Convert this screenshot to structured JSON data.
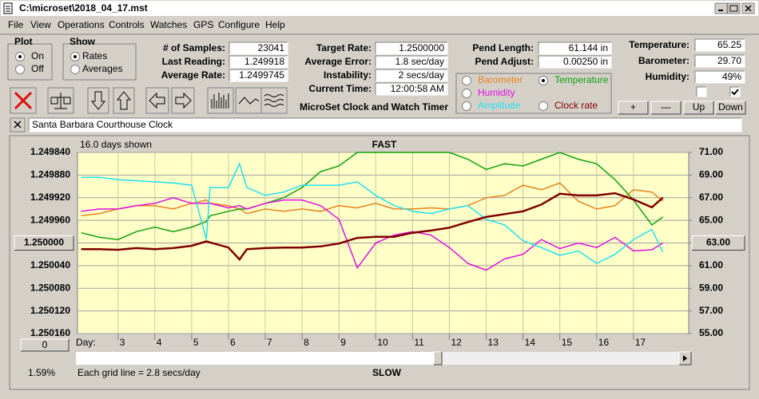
{
  "window": {
    "title": "C:\\microset\\2018_04_17.mst"
  },
  "menu": [
    "File",
    "View",
    "Operations",
    "Controls",
    "Watches",
    "GPS",
    "Configure",
    "Help"
  ],
  "plot_group": {
    "title": "Plot",
    "options": [
      {
        "label": "On",
        "checked": true
      },
      {
        "label": "Off",
        "checked": false
      }
    ]
  },
  "show_group": {
    "title": "Show",
    "options": [
      {
        "label": "Rates",
        "checked": true
      },
      {
        "label": "Averages",
        "checked": false
      }
    ]
  },
  "fields_1": [
    {
      "label": "# of Samples:",
      "value": "23041"
    },
    {
      "label": "Last Reading:",
      "value": "1.249918"
    },
    {
      "label": "Average Rate:",
      "value": "1.2499745"
    }
  ],
  "fields_2": [
    {
      "label": "Target Rate:",
      "value": "1.2500000"
    },
    {
      "label": "Average Error:",
      "value": "1.8 sec/day"
    },
    {
      "label": "Instability:",
      "value": "2 secs/day"
    },
    {
      "label": "Current Time:",
      "value": "12:00:58 AM"
    }
  ],
  "fields_3": [
    {
      "label": "Pend Length:",
      "value": "61.144 in"
    },
    {
      "label": "Pend Adjust:",
      "value": "0.00250 in"
    }
  ],
  "fields_4": [
    {
      "label": "Temperature:",
      "value": "65.25"
    },
    {
      "label": "Barometer:",
      "value": "29.70"
    },
    {
      "label": "Humidity:",
      "value": "49%"
    }
  ],
  "app_title": "MicroSet Clock and Watch Timer",
  "checkboxes": [
    false,
    true
  ],
  "buttons": [
    "+",
    "—",
    "Up",
    "Down"
  ],
  "clock_name": "Santa Barbara Courthouse Clock",
  "chart_data": {
    "type": "line",
    "days_shown": "16.0 days shown",
    "top_label": "FAST",
    "bottom_label": "SLOW",
    "x_label": "Day:",
    "grid_note": "Each grid line = 2.8 secs/day",
    "zoom": "0",
    "percent": "1.59%",
    "grid": true,
    "xlim": [
      1.9,
      18.5
    ],
    "xticks": [
      3,
      4,
      5,
      6,
      7,
      8,
      9,
      10,
      11,
      12,
      13,
      14,
      15,
      16,
      17
    ],
    "ylim": [
      1.25016,
      1.24984
    ],
    "yticks": [
      {
        "value": 1.25016,
        "label": "1.250160"
      },
      {
        "value": 1.25012,
        "label": "1.250120"
      },
      {
        "value": 1.25008,
        "label": "1.250080"
      },
      {
        "value": 1.25004,
        "label": "1.250040"
      },
      {
        "value": 1.25,
        "label": "1.250000"
      },
      {
        "value": 1.24996,
        "label": "1.249960"
      },
      {
        "value": 1.24992,
        "label": "1.249920"
      },
      {
        "value": 1.24988,
        "label": "1.249880"
      },
      {
        "value": 1.24984,
        "label": "1.249840"
      }
    ],
    "y2lim": [
      55,
      71
    ],
    "y2ticks": [
      {
        "value": 55,
        "label": "55.00"
      },
      {
        "value": 57,
        "label": "57.00"
      },
      {
        "value": 59,
        "label": "59.00"
      },
      {
        "value": 61,
        "label": "61.00"
      },
      {
        "value": 63,
        "label": "63.00"
      },
      {
        "value": 65,
        "label": "65.00"
      },
      {
        "value": 67,
        "label": "67.00"
      },
      {
        "value": 69,
        "label": "69.00"
      },
      {
        "value": 71,
        "label": "71.00"
      }
    ],
    "x": [
      2,
      2.5,
      3,
      3.5,
      4,
      4.5,
      5,
      5.4,
      5.5,
      6,
      6.3,
      6.5,
      7,
      7.5,
      8,
      8.5,
      9,
      9.5,
      10,
      10.5,
      11,
      11.5,
      12,
      12.5,
      13,
      13.5,
      14,
      14.5,
      15,
      15.5,
      16,
      16.5,
      17,
      17.5,
      17.8
    ],
    "series": [
      {
        "name": "Barometer",
        "color": "#e8821e",
        "axis": "y2",
        "selected": false,
        "values": [
          65.4,
          65.6,
          66.0,
          66.3,
          66.3,
          66.0,
          66.5,
          66.8,
          66.5,
          66.3,
          66.0,
          65.6,
          66.0,
          65.8,
          66.0,
          65.8,
          66.3,
          66.1,
          66.5,
          66.0,
          66.0,
          66.1,
          66.0,
          66.3,
          67.0,
          67.2,
          68.1,
          67.7,
          68.3,
          66.7,
          66.0,
          66.3,
          67.7,
          67.5,
          66.7
        ]
      },
      {
        "name": "Temperature",
        "color": "#10a010",
        "axis": "y2",
        "selected": true,
        "values": [
          63.9,
          63.5,
          63.3,
          64.0,
          64.4,
          64.0,
          64.4,
          64.9,
          65.4,
          65.8,
          66.0,
          66.0,
          66.5,
          67.0,
          67.9,
          69.3,
          69.8,
          71.0,
          71.0,
          71.0,
          71.0,
          71.0,
          71.0,
          70.4,
          69.5,
          70.0,
          69.8,
          70.4,
          71.0,
          70.4,
          70.0,
          68.6,
          66.8,
          64.6,
          65.3
        ]
      },
      {
        "name": "Humidity",
        "color": "#e010e0",
        "axis": "y2",
        "selected": false,
        "values": [
          65.8,
          66.0,
          66.0,
          66.3,
          66.5,
          67.0,
          66.5,
          66.5,
          66.5,
          66.1,
          66.3,
          66.0,
          66.5,
          66.8,
          66.8,
          66.3,
          65.1,
          60.8,
          63.0,
          63.7,
          64.0,
          63.7,
          62.6,
          61.2,
          60.6,
          61.6,
          62.0,
          63.3,
          62.5,
          63.0,
          62.6,
          63.5,
          62.3,
          62.4,
          63.0
        ]
      },
      {
        "name": "Amplitude",
        "color": "#20e0f0",
        "axis": "y2",
        "selected": false,
        "values": [
          68.8,
          68.8,
          68.6,
          68.5,
          68.4,
          68.3,
          68.1,
          63.3,
          67.9,
          67.9,
          70.0,
          67.9,
          67.2,
          67.5,
          68.1,
          68.1,
          68.1,
          68.4,
          67.2,
          66.3,
          65.8,
          65.6,
          66.0,
          66.3,
          65.1,
          64.6,
          63.2,
          62.6,
          61.9,
          62.3,
          61.2,
          62.0,
          63.3,
          64.2,
          62.2
        ]
      },
      {
        "name": "Clock rate",
        "color": "#800000",
        "selected": false,
        "values": [
          1.250011,
          1.250011,
          1.250012,
          1.250009,
          1.250011,
          1.250009,
          1.250005,
          1.249997,
          1.249999,
          1.250008,
          1.250029,
          1.250011,
          1.250009,
          1.250008,
          1.250008,
          1.250006,
          1.250001,
          1.249991,
          1.249989,
          1.249989,
          1.249982,
          1.249978,
          1.249973,
          1.249963,
          1.249954,
          1.249949,
          1.249944,
          1.249932,
          1.249913,
          1.249916,
          1.249916,
          1.249912,
          1.249923,
          1.249937,
          1.24992
        ]
      }
    ]
  }
}
